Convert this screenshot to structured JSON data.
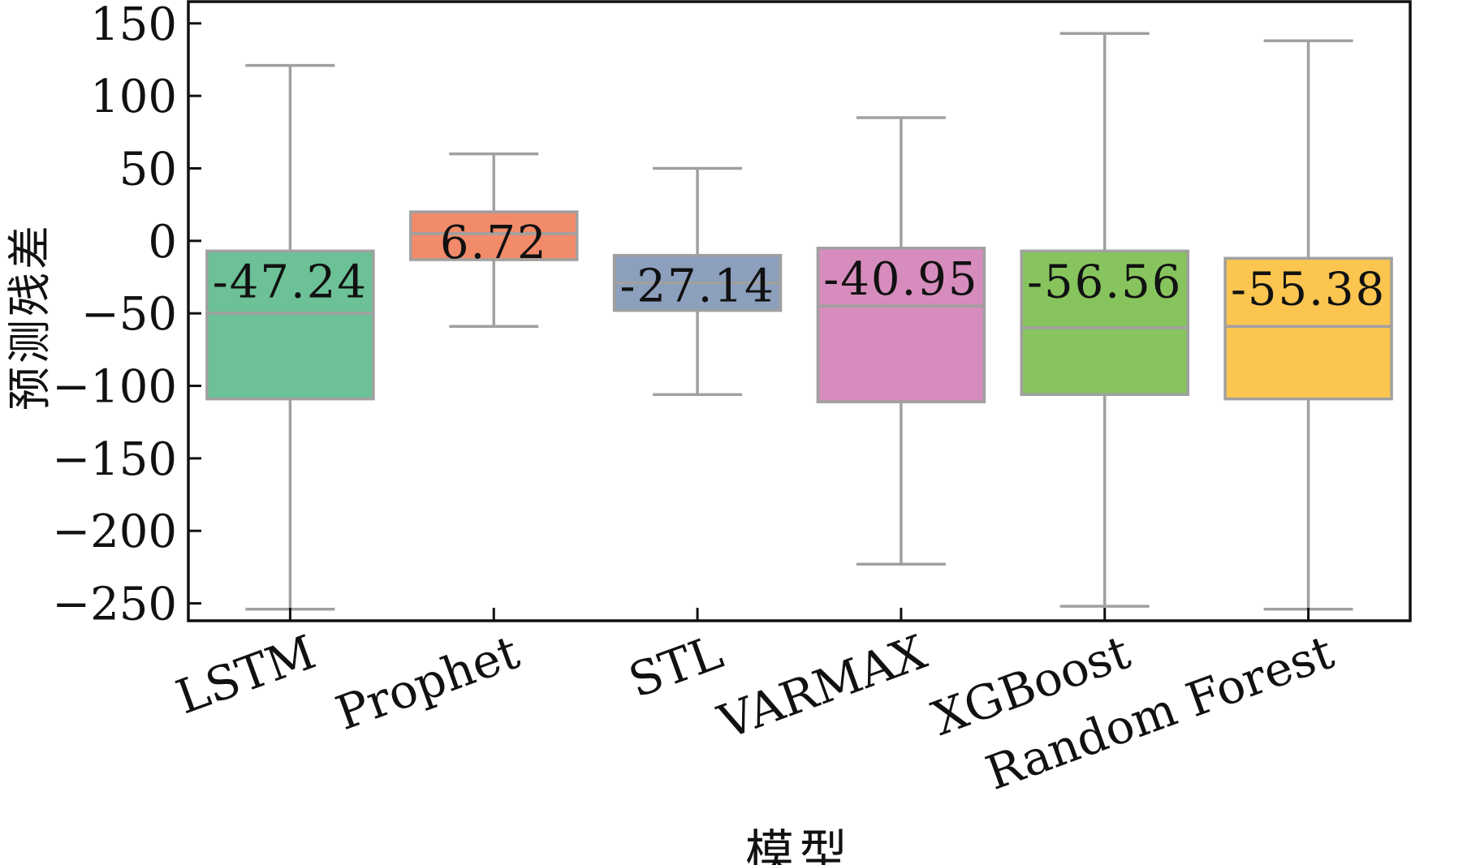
{
  "chart_data": {
    "type": "box",
    "xlabel": "模型",
    "ylabel": "预测残差",
    "ylim": [
      -262,
      165
    ],
    "yticks": [
      150,
      100,
      50,
      0,
      -50,
      -100,
      -150,
      -200,
      -250
    ],
    "ytick_labels": [
      "150",
      "100",
      "50",
      "0",
      "−50",
      "−100",
      "−150",
      "−200",
      "−250"
    ],
    "grid": false,
    "categories": [
      "LSTM",
      "Prophet",
      "STL",
      "VARMAX",
      "XGBoost",
      "Random Forest"
    ],
    "boxes": [
      {
        "category": "LSTM",
        "whisker_low": -254,
        "q1": -109,
        "median": -50,
        "q3": -7,
        "whisker_high": 121,
        "mean_label": "-47.24",
        "color": "#6cc197"
      },
      {
        "category": "Prophet",
        "whisker_low": -59,
        "q1": -13,
        "median": 5,
        "q3": 20,
        "whisker_high": 60,
        "mean_label": "6.72",
        "color": "#f28b6a"
      },
      {
        "category": "STL",
        "whisker_low": -106,
        "q1": -48,
        "median": -29,
        "q3": -10,
        "whisker_high": 50,
        "mean_label": "-27.14",
        "color": "#8c9fbc"
      },
      {
        "category": "VARMAX",
        "whisker_low": -223,
        "q1": -111,
        "median": -45,
        "q3": -5,
        "whisker_high": 85,
        "mean_label": "-40.95",
        "color": "#d68cbc"
      },
      {
        "category": "XGBoost",
        "whisker_low": -252,
        "q1": -106,
        "median": -60,
        "q3": -7,
        "whisker_high": 143,
        "mean_label": "-56.56",
        "color": "#87c45e"
      },
      {
        "category": "Random Forest",
        "whisker_low": -254,
        "q1": -109,
        "median": -59,
        "q3": -12,
        "whisker_high": 138,
        "mean_label": "-55.38",
        "color": "#fbc550"
      }
    ]
  }
}
